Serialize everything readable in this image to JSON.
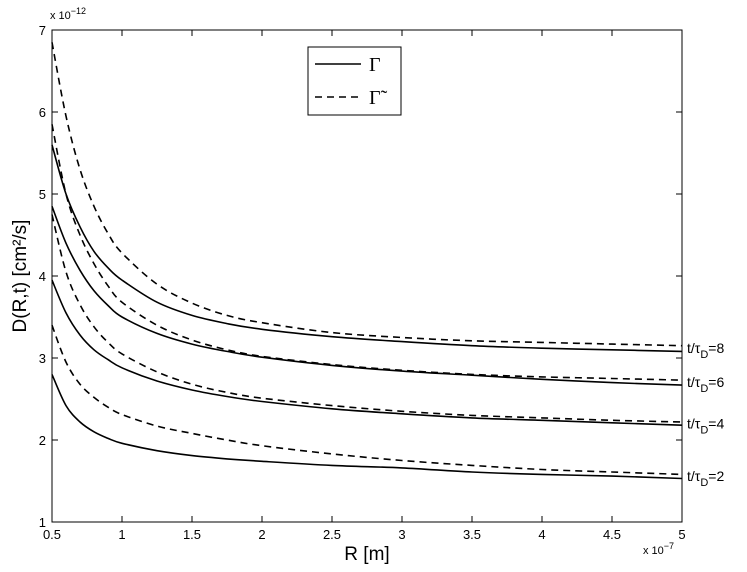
{
  "chart_data": {
    "type": "line",
    "xlabel": "R [m]",
    "ylabel": "D(R,t) [cm²/s]",
    "x_multiplier": "x 10",
    "x_exponent": "−7",
    "y_multiplier": "x 10",
    "y_exponent": "−12",
    "xlim": [
      0.5,
      5
    ],
    "ylim": [
      1,
      7
    ],
    "x_ticks": [
      0.5,
      1,
      1.5,
      2,
      2.5,
      3,
      3.5,
      4,
      4.5,
      5
    ],
    "x_tick_labels": [
      "0.5",
      "1",
      "1.5",
      "2",
      "2.5",
      "3",
      "3.5",
      "4",
      "4.5",
      "5"
    ],
    "y_ticks": [
      1,
      2,
      3,
      4,
      5,
      6,
      7
    ],
    "y_tick_labels": [
      "1",
      "2",
      "3",
      "4",
      "5",
      "6",
      "7"
    ],
    "grid": false,
    "legend": {
      "placement": "top-center",
      "entries": [
        {
          "label": "Γ",
          "style": "solid"
        },
        {
          "label": "Γ̃",
          "style": "dashed"
        }
      ]
    },
    "x": [
      0.5,
      0.6,
      0.7,
      0.8,
      0.9,
      1.0,
      1.25,
      1.5,
      1.75,
      2.0,
      2.5,
      3.0,
      3.5,
      4.0,
      4.5,
      5.0
    ],
    "series": [
      {
        "style": "solid",
        "group": "t/τD=2",
        "values": [
          2.8,
          2.42,
          2.22,
          2.1,
          2.02,
          1.96,
          1.87,
          1.81,
          1.77,
          1.74,
          1.69,
          1.66,
          1.61,
          1.58,
          1.56,
          1.53
        ]
      },
      {
        "style": "dashed",
        "group": "t/τD=2",
        "values": [
          3.4,
          2.95,
          2.68,
          2.52,
          2.4,
          2.31,
          2.17,
          2.08,
          2.0,
          1.93,
          1.83,
          1.75,
          1.69,
          1.64,
          1.61,
          1.58
        ]
      },
      {
        "style": "solid",
        "group": "t/τD=4",
        "values": [
          3.95,
          3.55,
          3.28,
          3.1,
          2.98,
          2.88,
          2.72,
          2.61,
          2.53,
          2.47,
          2.38,
          2.32,
          2.27,
          2.24,
          2.21,
          2.18
        ]
      },
      {
        "style": "dashed",
        "group": "t/τD=4",
        "values": [
          4.75,
          4.05,
          3.65,
          3.38,
          3.19,
          3.05,
          2.83,
          2.68,
          2.58,
          2.51,
          2.42,
          2.35,
          2.3,
          2.27,
          2.24,
          2.22
        ]
      },
      {
        "style": "solid",
        "group": "t/τD=6",
        "values": [
          4.85,
          4.4,
          4.07,
          3.82,
          3.64,
          3.5,
          3.3,
          3.17,
          3.08,
          3.01,
          2.91,
          2.84,
          2.79,
          2.74,
          2.7,
          2.67
        ]
      },
      {
        "style": "dashed",
        "group": "t/τD=6",
        "values": [
          5.85,
          5.0,
          4.5,
          4.15,
          3.88,
          3.68,
          3.4,
          3.22,
          3.1,
          3.02,
          2.92,
          2.85,
          2.8,
          2.77,
          2.75,
          2.73
        ]
      },
      {
        "style": "solid",
        "group": "t/τD=8",
        "values": [
          5.6,
          5.0,
          4.6,
          4.3,
          4.1,
          3.95,
          3.68,
          3.52,
          3.42,
          3.35,
          3.26,
          3.2,
          3.15,
          3.12,
          3.1,
          3.08
        ]
      },
      {
        "style": "dashed",
        "group": "t/τD=8",
        "values": [
          6.85,
          5.95,
          5.3,
          4.85,
          4.52,
          4.28,
          3.9,
          3.67,
          3.52,
          3.43,
          3.31,
          3.25,
          3.21,
          3.19,
          3.17,
          3.15
        ]
      }
    ],
    "annotations": [
      {
        "prefix": "t/τ",
        "sub": "D",
        "suffix": "=8",
        "y": 3.12
      },
      {
        "prefix": "t/τ",
        "sub": "D",
        "suffix": "=6",
        "y": 2.71
      },
      {
        "prefix": "t/τ",
        "sub": "D",
        "suffix": "=4",
        "y": 2.2
      },
      {
        "prefix": "t/τ",
        "sub": "D",
        "suffix": "=2",
        "y": 1.56
      }
    ]
  }
}
